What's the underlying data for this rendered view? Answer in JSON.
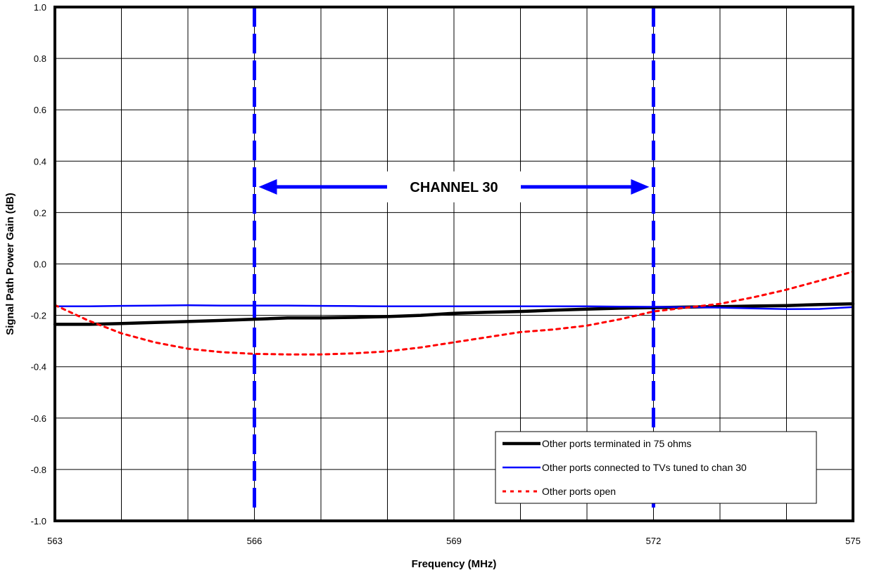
{
  "chart_data": {
    "type": "line",
    "xlabel": "Frequency (MHz)",
    "ylabel": "Signal Path Power Gain (dB)",
    "xlim": [
      563,
      575
    ],
    "ylim": [
      -1.0,
      1.0
    ],
    "x_ticks": [
      563,
      566,
      569,
      572,
      575
    ],
    "x_tick_labels": [
      "563",
      "566",
      "569",
      "572",
      "575"
    ],
    "x_minor_ticks": [
      564,
      565,
      567,
      568,
      570,
      571,
      573,
      574
    ],
    "y_ticks": [
      1.0,
      0.8,
      0.6,
      0.4,
      0.2,
      0.0,
      -0.2,
      -0.4,
      -0.6,
      -0.8,
      -1.0
    ],
    "y_tick_labels": [
      "1.0",
      "0.8",
      "0.6",
      "0.4",
      "0.2",
      "0.0",
      "-0.2",
      "-0.4",
      "-0.6",
      "-0.8",
      "-1.0"
    ],
    "grid": true,
    "legend_position": "bottom-right",
    "annotation": {
      "text": "CHANNEL 30",
      "y": 0.3,
      "x_start": 566,
      "x_end": 572,
      "color": "#0000ff"
    },
    "series": [
      {
        "name": "Other ports terminated in 75 ohms",
        "color": "#000000",
        "style": "solid-thick",
        "x": [
          563,
          563.5,
          564,
          564.5,
          565,
          565.5,
          566,
          566.5,
          567,
          567.5,
          568,
          568.5,
          569,
          569.5,
          570,
          570.5,
          571,
          571.5,
          572,
          572.5,
          573,
          573.5,
          574,
          574.5,
          575
        ],
        "y": [
          -0.235,
          -0.235,
          -0.232,
          -0.228,
          -0.224,
          -0.22,
          -0.215,
          -0.21,
          -0.21,
          -0.208,
          -0.205,
          -0.2,
          -0.192,
          -0.188,
          -0.185,
          -0.18,
          -0.176,
          -0.172,
          -0.17,
          -0.168,
          -0.166,
          -0.164,
          -0.162,
          -0.158,
          -0.155
        ]
      },
      {
        "name": "Other ports connected to TVs tuned to chan 30",
        "color": "#0000ff",
        "style": "solid",
        "x": [
          563,
          563.5,
          564,
          564.5,
          565,
          565.5,
          566,
          566.5,
          567,
          567.5,
          568,
          568.5,
          569,
          569.5,
          570,
          570.5,
          571,
          571.5,
          572,
          572.5,
          573,
          573.5,
          574,
          574.5,
          575
        ],
        "y": [
          -0.165,
          -0.165,
          -0.163,
          -0.162,
          -0.161,
          -0.162,
          -0.162,
          -0.162,
          -0.163,
          -0.164,
          -0.165,
          -0.165,
          -0.165,
          -0.165,
          -0.165,
          -0.165,
          -0.165,
          -0.166,
          -0.167,
          -0.168,
          -0.17,
          -0.173,
          -0.176,
          -0.175,
          -0.168
        ]
      },
      {
        "name": "Other ports open",
        "color": "#ff0000",
        "style": "dashed",
        "x": [
          563,
          563.5,
          564,
          564.5,
          565,
          565.5,
          566,
          566.5,
          567,
          567.5,
          568,
          568.5,
          569,
          569.5,
          570,
          570.5,
          571,
          571.5,
          572,
          572.5,
          573,
          573.5,
          574,
          574.5,
          575
        ],
        "y": [
          -0.16,
          -0.22,
          -0.27,
          -0.305,
          -0.33,
          -0.343,
          -0.35,
          -0.352,
          -0.352,
          -0.348,
          -0.34,
          -0.325,
          -0.305,
          -0.285,
          -0.265,
          -0.255,
          -0.24,
          -0.215,
          -0.185,
          -0.17,
          -0.155,
          -0.13,
          -0.1,
          -0.065,
          -0.03
        ]
      }
    ]
  }
}
